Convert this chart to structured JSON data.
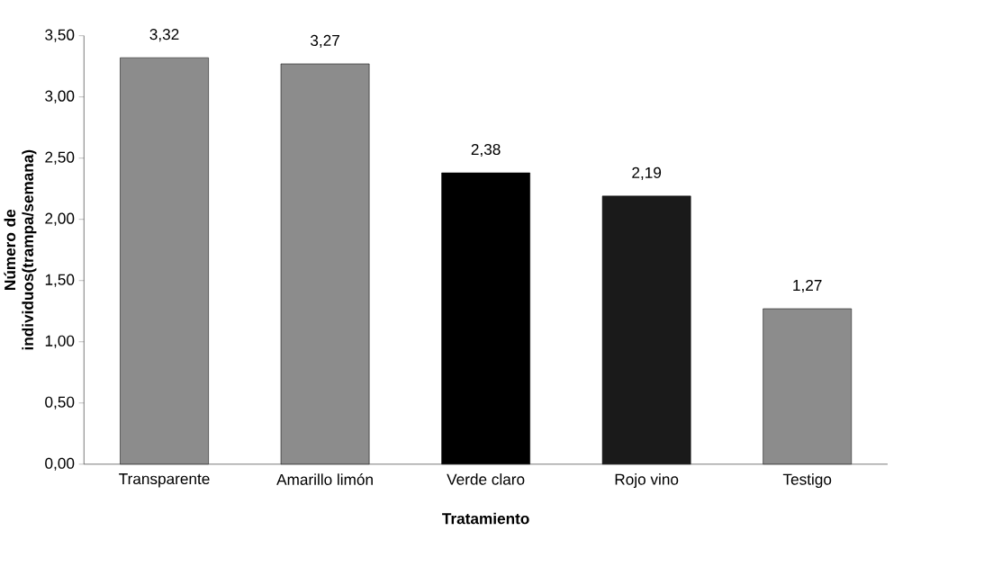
{
  "chart_data": {
    "type": "bar",
    "xlabel": "Tratamiento",
    "ylabel": "Número de individuos(trampa/semana)",
    "categories": [
      "Transparente",
      "Amarillo limón",
      "Verde claro",
      "Rojo vino",
      "Testigo"
    ],
    "values": [
      3.32,
      3.27,
      2.38,
      2.19,
      1.27
    ],
    "value_labels": [
      "3,32",
      "3,27",
      "2,38",
      "2,19",
      "1,27"
    ],
    "colors": [
      "#8c8c8c",
      "#8c8c8c",
      "#000000",
      "#1a1a1a",
      "#8c8c8c"
    ],
    "ylim": [
      0,
      3.5
    ],
    "yticks": [
      {
        "value": 0,
        "label": "0,00"
      },
      {
        "value": 0.5,
        "label": "0,50"
      },
      {
        "value": 1,
        "label": "1,00"
      },
      {
        "value": 1.5,
        "label": "1,50"
      },
      {
        "value": 2,
        "label": "2,00"
      },
      {
        "value": 2.5,
        "label": "2,50"
      },
      {
        "value": 3,
        "label": "3,00"
      },
      {
        "value": 3.5,
        "label": "3,50"
      }
    ]
  }
}
